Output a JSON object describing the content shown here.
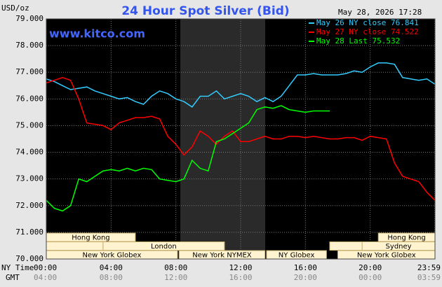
{
  "chart_data": {
    "type": "line",
    "title": "24 Hour Spot Silver (Bid)",
    "watermark": "www.kitco.com",
    "timestamp": "May 28, 2026 17:28",
    "y_unit": "USD/oz",
    "x_label": "NY Time",
    "x2_label": "GMT",
    "xlim": [
      0,
      24
    ],
    "ylim": [
      70,
      79
    ],
    "grid": true,
    "xticks": [
      {
        "value": 0,
        "label": "00:00"
      },
      {
        "value": 4,
        "label": "04:00"
      },
      {
        "value": 8,
        "label": "08:00"
      },
      {
        "value": 12,
        "label": "12:00"
      },
      {
        "value": 16,
        "label": "16:00"
      },
      {
        "value": 20,
        "label": "20:00"
      },
      {
        "value": 23.983,
        "label": "23:59"
      }
    ],
    "x2_tick_labels": [
      "04:00",
      "08:00",
      "12:00",
      "16:00",
      "20:00",
      "00:00",
      "03:59"
    ],
    "yticks": [
      {
        "value": 70,
        "label": "70.000"
      },
      {
        "value": 71,
        "label": "71.000"
      },
      {
        "value": 72,
        "label": "72.000"
      },
      {
        "value": 73,
        "label": "73.000"
      },
      {
        "value": 74,
        "label": "74.000"
      },
      {
        "value": 75,
        "label": "75.000"
      },
      {
        "value": 76,
        "label": "76.000"
      },
      {
        "value": 77,
        "label": "77.000"
      },
      {
        "value": 78,
        "label": "78.000"
      },
      {
        "value": 79,
        "label": "79.000"
      }
    ],
    "sessions": [
      "Hong Kong",
      "London",
      "New York Globex",
      "New York NYMEX",
      "NY Globex",
      "Hong Kong",
      "Sydney",
      "New York Globex"
    ],
    "x": [
      0,
      0.5,
      1,
      1.5,
      2,
      2.5,
      3,
      3.5,
      4,
      4.5,
      5,
      5.5,
      6,
      6.5,
      7,
      7.5,
      8,
      8.5,
      9,
      9.5,
      10,
      10.5,
      11,
      11.5,
      12,
      12.5,
      13,
      13.5,
      14,
      14.5,
      15,
      15.5,
      16,
      16.5,
      17,
      17.5,
      18,
      18.5,
      19,
      19.5,
      20,
      20.5,
      21,
      21.5,
      22,
      22.5,
      23,
      23.5,
      24
    ],
    "series": [
      {
        "name": "May 26 NY close 76.841",
        "color": "#33ccff",
        "values": [
          76.75,
          76.65,
          76.5,
          76.35,
          76.4,
          76.45,
          76.3,
          76.2,
          76.1,
          76.0,
          76.05,
          75.9,
          75.8,
          76.1,
          76.3,
          76.2,
          76.0,
          75.9,
          75.7,
          76.1,
          76.1,
          76.3,
          76.0,
          76.1,
          76.2,
          76.1,
          75.9,
          76.05,
          75.9,
          76.1,
          76.5,
          76.9,
          76.9,
          76.95,
          76.9,
          76.9,
          76.9,
          76.95,
          77.05,
          77.0,
          77.2,
          77.35,
          77.35,
          77.3,
          76.8,
          76.75,
          76.7,
          76.75,
          76.55
        ]
      },
      {
        "name": "May 27 NY close 74.522",
        "color": "#ff0000",
        "values": [
          76.6,
          76.7,
          76.8,
          76.7,
          76.0,
          75.1,
          75.05,
          75.0,
          74.85,
          75.1,
          75.2,
          75.3,
          75.3,
          75.35,
          75.25,
          74.6,
          74.3,
          73.9,
          74.2,
          74.8,
          74.6,
          74.3,
          74.6,
          74.8,
          74.4,
          74.4,
          74.5,
          74.6,
          74.5,
          74.5,
          74.6,
          74.6,
          74.55,
          74.6,
          74.55,
          74.5,
          74.5,
          74.55,
          74.55,
          74.45,
          74.6,
          74.55,
          74.5,
          73.6,
          73.1,
          73.0,
          72.9,
          72.5,
          72.2
        ]
      },
      {
        "name": "May 28 Last 75.532",
        "color": "#00ff00",
        "values": [
          72.2,
          71.9,
          71.8,
          72.0,
          73.0,
          72.9,
          73.1,
          73.3,
          73.35,
          73.3,
          73.4,
          73.3,
          73.4,
          73.35,
          73.0,
          72.95,
          72.9,
          73.0,
          73.7,
          73.4,
          73.3,
          74.4,
          74.5,
          74.7,
          74.9,
          75.1,
          75.6,
          75.7,
          75.65,
          75.75,
          75.6,
          75.55,
          75.5,
          75.55,
          75.55,
          75.55,
          null,
          null,
          null,
          null,
          null,
          null,
          null,
          null,
          null,
          null,
          null,
          null,
          null
        ]
      }
    ]
  }
}
